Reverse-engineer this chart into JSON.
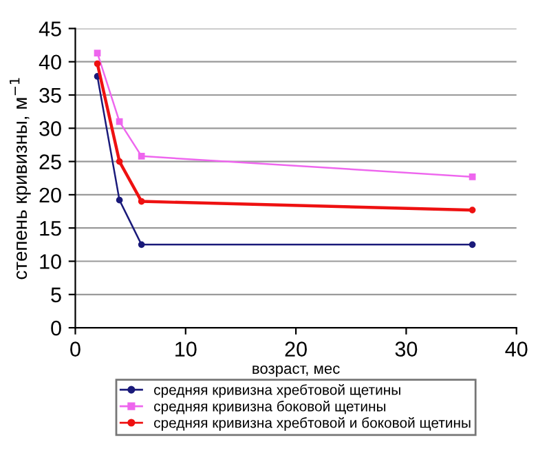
{
  "chart_data": {
    "type": "line",
    "xlabel": "возраст, мес",
    "ylabel": "степень кривизны, м$^{−1}$",
    "x": [
      2,
      4,
      6,
      36
    ],
    "series": [
      {
        "name": "средняя кривизна хребтовой щетины",
        "color": "#1a1a7a",
        "marker": "circle",
        "values": [
          37.8,
          19.2,
          12.5,
          12.5
        ]
      },
      {
        "name": "средняя кривизна боковой щетины",
        "color": "#ee66ee",
        "marker": "square",
        "values": [
          41.3,
          31,
          25.8,
          22.7
        ]
      },
      {
        "name": "средняя кривизна хребтовой и боковой щетины",
        "color": "#ee1111",
        "marker": "circle",
        "values": [
          39.7,
          25,
          19,
          17.7
        ]
      }
    ],
    "xlim": [
      0,
      40
    ],
    "xticks": [
      0,
      10,
      20,
      30,
      40
    ],
    "ylim": [
      0,
      45
    ],
    "yticks": [
      0,
      5,
      10,
      15,
      20,
      25,
      30,
      35,
      40,
      45
    ],
    "grid": "y",
    "legend": "bottom"
  }
}
